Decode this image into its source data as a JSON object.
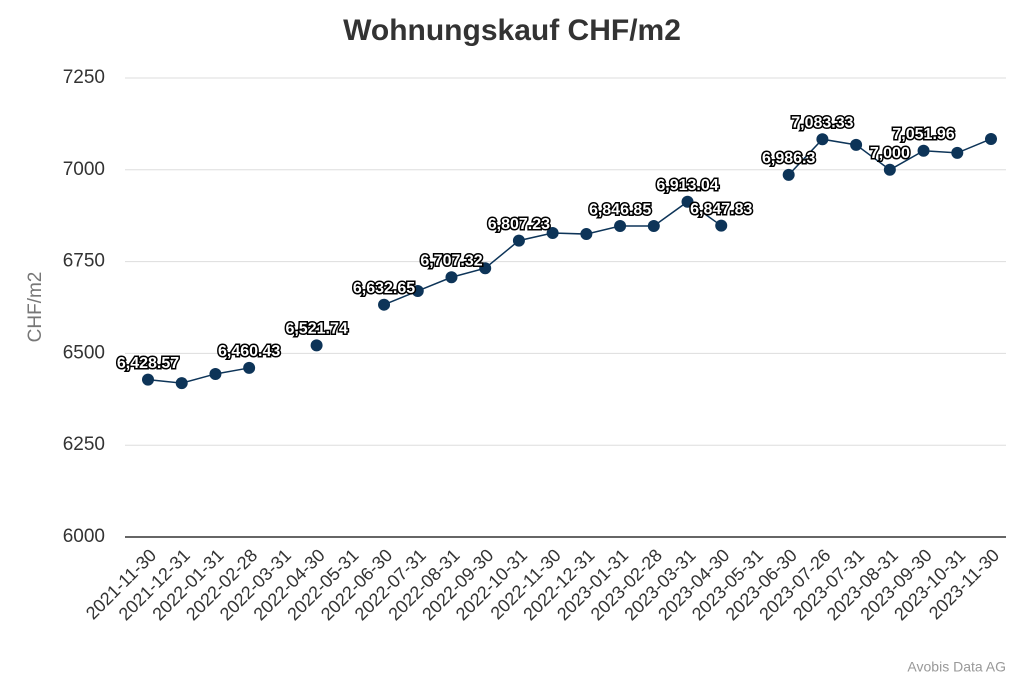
{
  "chart_data": {
    "type": "line",
    "title": "Wohnungskauf CHF/m2",
    "y_label": "CHF/m2",
    "credit": "Avobis Data AG",
    "categories": [
      "2021-11-30",
      "2021-12-31",
      "2022-01-31",
      "2022-02-28",
      "2022-03-31",
      "2022-04-30",
      "2022-05-31",
      "2022-06-30",
      "2022-07-31",
      "2022-08-31",
      "2022-09-30",
      "2022-10-31",
      "2022-11-30",
      "2022-12-31",
      "2023-01-31",
      "2023-02-28",
      "2023-03-31",
      "2023-04-30",
      "2023-05-31",
      "2023-06-30",
      "2023-07-26",
      "2023-07-31",
      "2023-08-31",
      "2023-09-30",
      "2023-10-31",
      "2023-11-30"
    ],
    "values": [
      6428.57,
      6419,
      6444,
      6460.43,
      null,
      6521.74,
      null,
      6632.65,
      6670,
      6707.32,
      6732,
      6807.23,
      6828,
      6825,
      6846.85,
      6847,
      6913.04,
      6847.83,
      null,
      6986.3,
      7083.33,
      7068,
      7000,
      7051.96,
      7046,
      7084
    ],
    "value_labels": [
      "6,428.57",
      null,
      null,
      "6,460.43",
      null,
      "6,521.74",
      null,
      "6,632.65",
      null,
      "6,707.32",
      null,
      "6,807.23",
      null,
      null,
      "6,846.85",
      null,
      "6,913.04",
      "6,847.83",
      null,
      "6,986.3",
      "7,083.33",
      null,
      "7,000",
      "7,051.96",
      null,
      null
    ],
    "color": "#0d3458",
    "ylim": [
      6000,
      7250
    ],
    "yticks": [
      6000,
      6250,
      6500,
      6750,
      7000,
      7250
    ],
    "grid": true
  }
}
